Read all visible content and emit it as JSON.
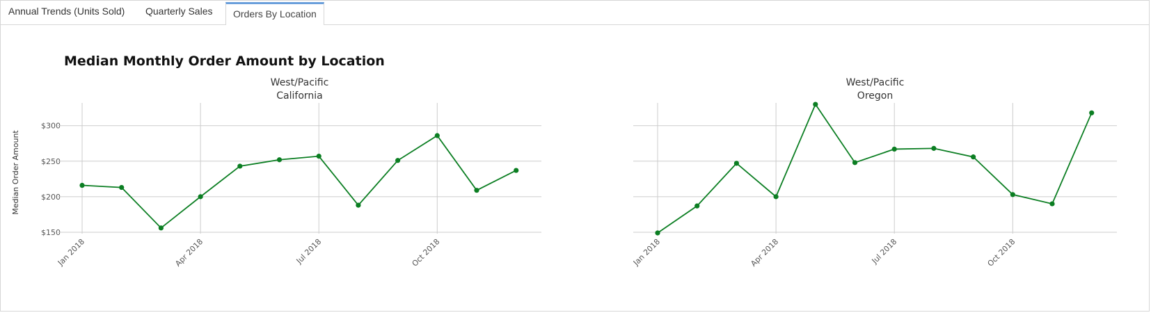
{
  "tabs": [
    {
      "label": "Annual Trends (Units Sold)",
      "active": false
    },
    {
      "label": "Quarterly Sales",
      "active": false
    },
    {
      "label": "Orders By Location",
      "active": true
    }
  ],
  "colors": {
    "series": "#0b7e22",
    "grid": "#cccccc",
    "tab_accent": "#6a9fdb"
  },
  "chart_data": {
    "type": "line",
    "title": "Median Monthly Order Amount by Location",
    "ylabel": "Median Order Amount",
    "xlabel": "",
    "ylim": [
      148,
      332
    ],
    "yticks": [
      150,
      200,
      250,
      300
    ],
    "ytick_labels": [
      "$150",
      "$200",
      "$250",
      "$300"
    ],
    "x": [
      "2018-01",
      "2018-02",
      "2018-03",
      "2018-04",
      "2018-05",
      "2018-06",
      "2018-07",
      "2018-08",
      "2018-09",
      "2018-10",
      "2018-11",
      "2018-12"
    ],
    "xticks": [
      0,
      3,
      6,
      9
    ],
    "xtick_labels": [
      "Jan 2018",
      "Apr 2018",
      "Jul 2018",
      "Oct 2018"
    ],
    "panels": [
      {
        "region": "West/Pacific",
        "state": "California",
        "values": [
          216,
          213,
          156,
          200,
          243,
          252,
          257,
          188,
          251,
          286,
          209,
          237
        ]
      },
      {
        "region": "West/Pacific",
        "state": "Oregon",
        "values": [
          149,
          187,
          247,
          200,
          330,
          248,
          267,
          268,
          256,
          203,
          190,
          318
        ]
      }
    ]
  }
}
